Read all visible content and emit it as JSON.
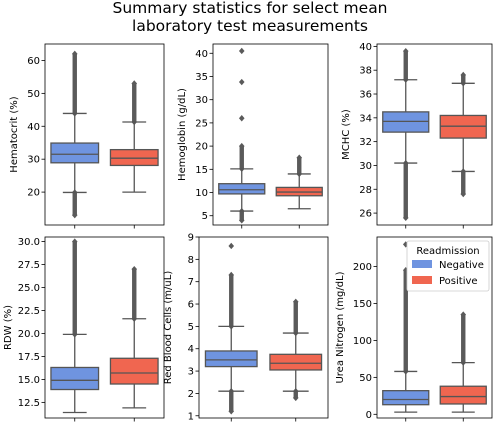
{
  "figure": {
    "title_line1": "Summary statistics for select mean",
    "title_line2": "laboratory test measurements"
  },
  "colors": {
    "negative": "#6F94E0",
    "positive": "#F06650",
    "whisker": "#555555"
  },
  "legend": {
    "title": "Readmission",
    "placement": "upper-right of Urea Nitrogen panel",
    "labels": [
      "Negative",
      "Positive"
    ]
  },
  "chart_data": [
    {
      "type": "box",
      "ylabel": "Hematocrit (%)",
      "ylim": [
        10,
        65
      ],
      "yticks": [
        20,
        30,
        40,
        50,
        60
      ],
      "tick_labels": [
        "20",
        "30",
        "40",
        "50",
        "60"
      ],
      "series": [
        {
          "name": "Negative",
          "q1": 28.9,
          "median": 31.5,
          "q3": 34.9,
          "whisker_low": 19.9,
          "whisker_high": 43.9,
          "outliers_low": [
            13,
            19.9
          ],
          "outliers_high": [
            43.9,
            62
          ]
        },
        {
          "name": "Positive",
          "q1": 28.1,
          "median": 30.3,
          "q3": 32.9,
          "whisker_low": 20.0,
          "whisker_high": 41.3,
          "outliers_low": [],
          "outliers_high": [
            41.3,
            53
          ]
        }
      ]
    },
    {
      "type": "box",
      "ylabel": "Hemoglobin (g/dL)",
      "ylim": [
        3,
        42
      ],
      "yticks": [
        5,
        10,
        15,
        20,
        25,
        30,
        35,
        40
      ],
      "tick_labels": [
        "5",
        "10",
        "15",
        "20",
        "25",
        "30",
        "35",
        "40"
      ],
      "series": [
        {
          "name": "Negative",
          "q1": 9.7,
          "median": 10.6,
          "q3": 11.9,
          "whisker_low": 6.0,
          "whisker_high": 15.1,
          "outliers_low": [
            4.0,
            6.0
          ],
          "outliers_high": [
            15.1,
            20.0
          ],
          "outliers_extra": [
            26.0,
            33.8,
            40.5
          ]
        },
        {
          "name": "Positive",
          "q1": 9.3,
          "median": 10.1,
          "q3": 11.1,
          "whisker_low": 6.5,
          "whisker_high": 14.0,
          "outliers_low": [],
          "outliers_high": [
            14.0,
            17.5
          ],
          "outliers_extra": []
        }
      ]
    },
    {
      "type": "box",
      "ylabel": "MCHC (%)",
      "ylim": [
        25,
        40.2
      ],
      "yticks": [
        26,
        28,
        30,
        32,
        34,
        36,
        38,
        40
      ],
      "tick_labels": [
        "26",
        "28",
        "30",
        "32",
        "34",
        "36",
        "38",
        "40"
      ],
      "series": [
        {
          "name": "Negative",
          "q1": 32.8,
          "median": 33.7,
          "q3": 34.5,
          "whisker_low": 30.2,
          "whisker_high": 37.2,
          "outliers_low": [
            25.6,
            30.2
          ],
          "outliers_high": [
            37.2,
            39.6
          ]
        },
        {
          "name": "Positive",
          "q1": 32.3,
          "median": 33.3,
          "q3": 34.2,
          "whisker_low": 29.5,
          "whisker_high": 36.9,
          "outliers_low": [
            27.6,
            29.5
          ],
          "outliers_high": [
            36.9,
            37.6
          ]
        }
      ]
    },
    {
      "type": "box",
      "ylabel": "RDW (%)",
      "ylim": [
        10.8,
        30.5
      ],
      "yticks": [
        12.5,
        15.0,
        17.5,
        20.0,
        22.5,
        25.0,
        27.5,
        30.0
      ],
      "tick_labels": [
        "12.5",
        "15.0",
        "17.5",
        "20.0",
        "22.5",
        "25.0",
        "27.5",
        "30.0"
      ],
      "series": [
        {
          "name": "Negative",
          "q1": 13.9,
          "median": 14.9,
          "q3": 16.3,
          "whisker_low": 11.4,
          "whisker_high": 19.9,
          "outliers_low": [],
          "outliers_high": [
            19.9,
            30.0
          ]
        },
        {
          "name": "Positive",
          "q1": 14.5,
          "median": 15.7,
          "q3": 17.3,
          "whisker_low": 11.9,
          "whisker_high": 21.6,
          "outliers_low": [],
          "outliers_high": [
            21.6,
            27.0
          ]
        }
      ]
    },
    {
      "type": "box",
      "ylabel": "Red Blood Cells (m/uL)",
      "ylim": [
        0.9,
        9.0
      ],
      "yticks": [
        1,
        2,
        3,
        4,
        5,
        6,
        7,
        8,
        9
      ],
      "tick_labels": [
        "1",
        "2",
        "3",
        "4",
        "5",
        "6",
        "7",
        "8",
        "9"
      ],
      "series": [
        {
          "name": "Negative",
          "q1": 3.2,
          "median": 3.5,
          "q3": 3.9,
          "whisker_low": 2.1,
          "whisker_high": 5.0,
          "outliers_low": [
            1.2,
            2.1
          ],
          "outliers_high": [
            5.0,
            7.3
          ],
          "outliers_extra": [
            8.6
          ]
        },
        {
          "name": "Positive",
          "q1": 3.05,
          "median": 3.35,
          "q3": 3.75,
          "whisker_low": 2.1,
          "whisker_high": 4.7,
          "outliers_low": [
            1.8,
            2.1
          ],
          "outliers_high": [
            4.7,
            6.1
          ],
          "outliers_extra": []
        }
      ]
    },
    {
      "type": "box",
      "ylabel": "Urea Nitrogen (mg/dL)",
      "ylim": [
        -5,
        240
      ],
      "yticks": [
        0,
        50,
        100,
        150,
        200
      ],
      "tick_labels": [
        "0",
        "50",
        "100",
        "150",
        "200"
      ],
      "series": [
        {
          "name": "Negative",
          "q1": 13.0,
          "median": 20.0,
          "q3": 32.0,
          "whisker_low": 3.0,
          "whisker_high": 58.0,
          "outliers_low": [],
          "outliers_high": [
            58.0,
            195.0
          ],
          "outliers_extra": [
            230.0
          ]
        },
        {
          "name": "Positive",
          "q1": 14.0,
          "median": 24.0,
          "q3": 38.0,
          "whisker_low": 3.0,
          "whisker_high": 70.0,
          "outliers_low": [],
          "outliers_high": [
            70.0,
            135.0
          ],
          "outliers_extra": []
        }
      ]
    }
  ]
}
